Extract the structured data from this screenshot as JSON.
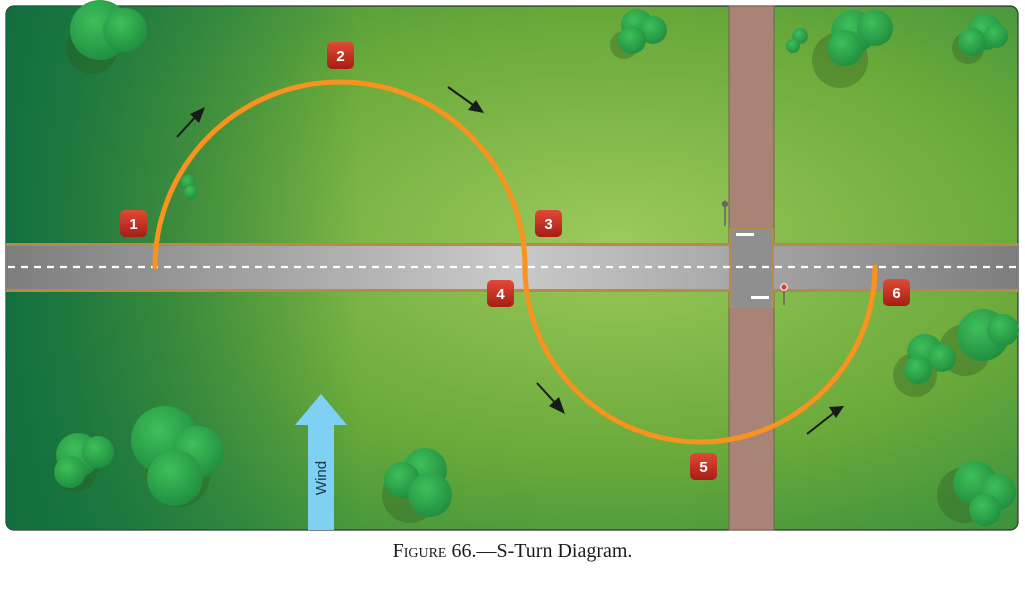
{
  "figure": {
    "caption_prefix": "Figure 66.",
    "caption_title": "—S-Turn Diagram."
  },
  "wind": {
    "label": "Wind"
  },
  "markers": [
    {
      "id": "1",
      "label": "1"
    },
    {
      "id": "2",
      "label": "2"
    },
    {
      "id": "3",
      "label": "3"
    },
    {
      "id": "4",
      "label": "4"
    },
    {
      "id": "5",
      "label": "5"
    },
    {
      "id": "6",
      "label": "6"
    }
  ],
  "colors": {
    "grass": "#7fb83f",
    "grass_dark": "#0d6b3e",
    "road": "#8a8a8a",
    "road_edge": "#b58a4a",
    "dirt_road": "#a98476",
    "path": "#f7931e",
    "marker": "#c0281e",
    "wind_arrow": "#7fd0f2"
  }
}
